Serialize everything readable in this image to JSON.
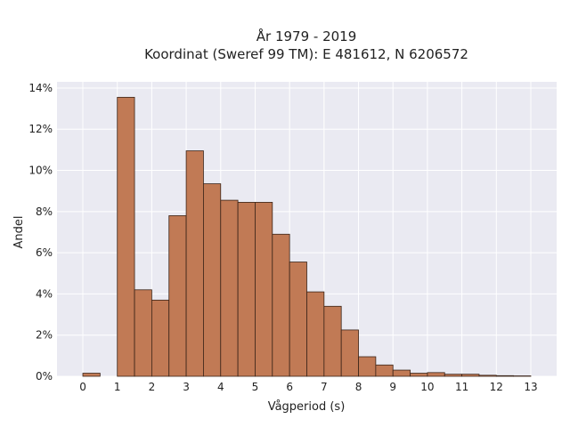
{
  "chart_data": {
    "type": "bar",
    "title_line1": "År 1979 - 2019",
    "title_line2": "Koordinat (Sweref 99 TM): E 481612, N 6206572",
    "xlabel": "Vågperiod (s)",
    "ylabel": "Andel",
    "bin_width": 0.5,
    "xlim": [
      -0.75,
      13.75
    ],
    "ylim": [
      0,
      14.3
    ],
    "x_ticks": [
      0,
      1,
      2,
      3,
      4,
      5,
      6,
      7,
      8,
      9,
      10,
      11,
      12,
      13
    ],
    "y_ticks": [
      0,
      2,
      4,
      6,
      8,
      10,
      12,
      14
    ],
    "y_tick_labels": [
      "0%",
      "2%",
      "4%",
      "6%",
      "8%",
      "10%",
      "12%",
      "14%"
    ],
    "grid": true,
    "colors": {
      "bar_fill": "#c17a55",
      "bar_edge": "#3a2418",
      "plot_bg": "#eaeaf2",
      "grid": "#ffffff"
    },
    "bins": [
      {
        "start": 0.0,
        "value": 0.15
      },
      {
        "start": 0.5,
        "value": 0.0
      },
      {
        "start": 1.0,
        "value": 13.55
      },
      {
        "start": 1.5,
        "value": 4.2
      },
      {
        "start": 2.0,
        "value": 3.7
      },
      {
        "start": 2.5,
        "value": 7.8
      },
      {
        "start": 3.0,
        "value": 10.95
      },
      {
        "start": 3.5,
        "value": 9.35
      },
      {
        "start": 4.0,
        "value": 8.55
      },
      {
        "start": 4.5,
        "value": 8.45
      },
      {
        "start": 5.0,
        "value": 8.45
      },
      {
        "start": 5.5,
        "value": 6.9
      },
      {
        "start": 6.0,
        "value": 5.55
      },
      {
        "start": 6.5,
        "value": 4.1
      },
      {
        "start": 7.0,
        "value": 3.4
      },
      {
        "start": 7.5,
        "value": 2.25
      },
      {
        "start": 8.0,
        "value": 0.95
      },
      {
        "start": 8.5,
        "value": 0.55
      },
      {
        "start": 9.0,
        "value": 0.3
      },
      {
        "start": 9.5,
        "value": 0.15
      },
      {
        "start": 10.0,
        "value": 0.18
      },
      {
        "start": 10.5,
        "value": 0.1
      },
      {
        "start": 11.0,
        "value": 0.1
      },
      {
        "start": 11.5,
        "value": 0.05
      },
      {
        "start": 12.0,
        "value": 0.03
      },
      {
        "start": 12.5,
        "value": 0.02
      }
    ]
  }
}
